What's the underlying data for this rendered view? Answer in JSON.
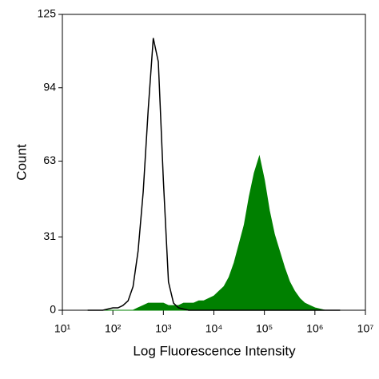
{
  "chart_data": {
    "type": "line",
    "xscale": "log",
    "xlabel": "Log Fluorescence Intensity",
    "ylabel": "Count",
    "xlim": [
      10,
      10000000
    ],
    "ylim": [
      0,
      125
    ],
    "xticks": [
      {
        "value": 10,
        "label": "10¹"
      },
      {
        "value": 100,
        "label": "10²"
      },
      {
        "value": 1000,
        "label": "10³"
      },
      {
        "value": 10000,
        "label": "10⁴"
      },
      {
        "value": 100000,
        "label": "10⁵"
      },
      {
        "value": 1000000,
        "label": "10⁶"
      },
      {
        "value": 10000000,
        "label": "10⁷"
      }
    ],
    "yticks": [
      0,
      31,
      63,
      94,
      125
    ],
    "x": [
      31.6,
      39.8,
      50.1,
      63.1,
      79.4,
      100,
      126,
      158,
      200,
      251,
      316,
      398,
      501,
      631,
      794,
      1000,
      1259,
      1585,
      1995,
      2512,
      3162,
      3981,
      5012,
      6310,
      7943,
      10000,
      12589,
      15849,
      19953,
      25119,
      31623,
      39811,
      50119,
      63096,
      79433,
      100000,
      125893,
      158489,
      199526,
      251189,
      316228,
      398107,
      501187,
      630957,
      794328,
      1000000,
      1258925,
      1584893,
      1995262,
      2511886,
      3162278
    ],
    "series": [
      {
        "color": "#008000",
        "filled": true,
        "values": [
          0,
          0,
          0,
          0,
          0,
          0,
          0,
          0,
          0,
          0,
          1,
          2,
          3,
          3,
          3,
          3,
          2,
          2,
          2,
          3,
          3,
          3,
          4,
          4,
          5,
          6,
          8,
          10,
          14,
          20,
          28,
          36,
          48,
          58,
          65,
          55,
          42,
          32,
          25,
          18,
          12,
          8,
          5,
          3,
          2,
          1,
          0.5,
          0,
          0,
          0,
          0
        ]
      },
      {
        "color": "#000000",
        "filled": false,
        "values": [
          0,
          0,
          0,
          0,
          0.5,
          1,
          1,
          2,
          4,
          10,
          25,
          50,
          85,
          115,
          105,
          55,
          12,
          3,
          1,
          0.5,
          0,
          0,
          0,
          0,
          0,
          0,
          0,
          0,
          0,
          0,
          0,
          0,
          0,
          0,
          0,
          0,
          0,
          0,
          0,
          0,
          0,
          0,
          0,
          0,
          0,
          0,
          0,
          0,
          0,
          0,
          0
        ]
      }
    ]
  }
}
